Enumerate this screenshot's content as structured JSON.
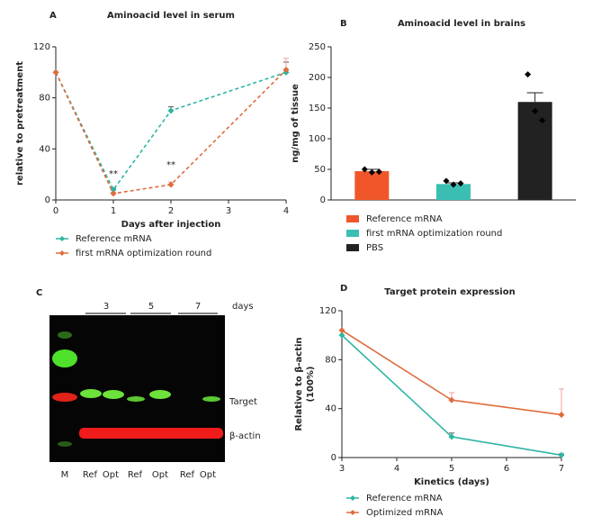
{
  "chart_data": [
    {
      "type": "line",
      "panel": "A",
      "title": "Aminoacid level in serum",
      "xlabel": "Days after injection",
      "ylabel": "relative to pretreatment",
      "xlim": [
        0,
        4
      ],
      "xticks": [
        0,
        1,
        2,
        3,
        4
      ],
      "ylim": [
        0,
        120
      ],
      "yticks": [
        0,
        40,
        80,
        120
      ],
      "series": [
        {
          "name": "Reference mRNA",
          "color": "#2db5a3",
          "x": [
            0,
            1,
            2,
            4
          ],
          "values": [
            100,
            8,
            70,
            100
          ],
          "errors": [
            0,
            1,
            3,
            8
          ]
        },
        {
          "name": "first mRNA optimization round",
          "color": "#e06b3c",
          "x": [
            0,
            1,
            2,
            4
          ],
          "values": [
            100,
            5,
            12,
            102
          ],
          "errors": [
            0,
            1,
            2,
            9
          ]
        }
      ],
      "annotations": [
        "**",
        "**"
      ]
    },
    {
      "type": "bar",
      "panel": "B",
      "title": "Aminoacid level in brains",
      "ylabel": "ng/mg of tissue",
      "ylim": [
        0,
        250
      ],
      "yticks": [
        0,
        50,
        100,
        150,
        200,
        250
      ],
      "categories": [
        null,
        null,
        null
      ],
      "series": [
        {
          "name": "Reference mRNA",
          "color": "#f0562a",
          "values": [
            47,
            null,
            null
          ],
          "errors": [
            3,
            null,
            null
          ],
          "points": [
            50,
            45,
            46
          ]
        },
        {
          "name": "first mRNA optimization round",
          "color": "#3bbfb3",
          "values": [
            null,
            26,
            null
          ],
          "errors": [
            null,
            2,
            null
          ],
          "points": [
            31,
            25,
            27
          ]
        },
        {
          "name": "PBS",
          "color": "#222222",
          "values": [
            null,
            null,
            160
          ],
          "errors": [
            null,
            null,
            15
          ],
          "points": [
            205,
            145,
            130
          ]
        }
      ]
    },
    {
      "type": "line",
      "panel": "D",
      "title": "Target protein expression",
      "xlabel": "Kinetics (days)",
      "ylabel": [
        "Relative to β-actin",
        "(100%)"
      ],
      "xlim": [
        3,
        7
      ],
      "xticks": [
        3,
        4,
        5,
        6,
        7
      ],
      "ylim": [
        0,
        120
      ],
      "yticks": [
        0,
        40,
        80,
        120
      ],
      "series": [
        {
          "name": "Reference mRNA",
          "color": "#2db5a3",
          "x": [
            3,
            5,
            7
          ],
          "values": [
            100,
            17,
            2
          ],
          "errors": [
            0,
            3,
            1
          ]
        },
        {
          "name": "Optimized mRNA",
          "color": "#e06b3c",
          "x": [
            3,
            5,
            7
          ],
          "values": [
            104,
            47,
            35
          ],
          "errors": [
            0,
            6,
            21
          ]
        }
      ]
    }
  ],
  "blot": {
    "panel": "C",
    "days": [
      "3",
      "5",
      "7"
    ],
    "days_label": "days",
    "bands": [
      "Target",
      "β-actin"
    ],
    "lanes": [
      "M",
      "Ref",
      "Opt",
      "Ref",
      "Opt",
      "Ref",
      "Opt"
    ]
  }
}
